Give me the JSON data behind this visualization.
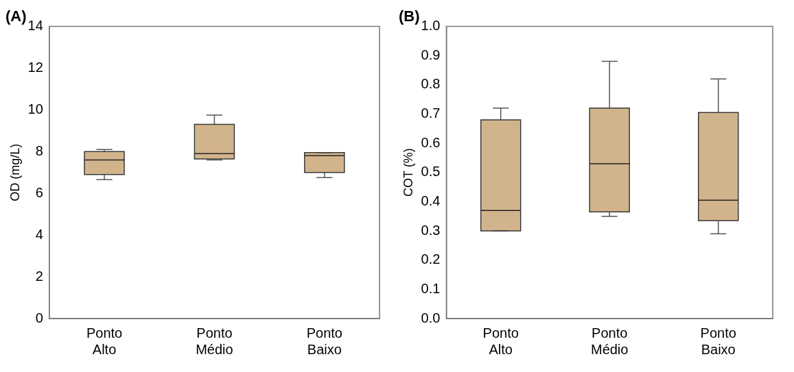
{
  "chart_data": [
    {
      "type": "box",
      "title": "(A)",
      "ylabel": "OD (mg/L)",
      "categories": [
        "Ponto Alto",
        "Ponto Médio",
        "Ponto Baixo"
      ],
      "ylim": [
        0,
        14
      ],
      "yticks": [
        0,
        2,
        4,
        6,
        8,
        10,
        12,
        14
      ],
      "series": [
        {
          "color": "#d2b48c",
          "boxes": [
            {
              "low": 6.65,
              "q1": 6.9,
              "median": 7.6,
              "q3": 8.0,
              "high": 8.1
            },
            {
              "low": 7.6,
              "q1": 7.65,
              "median": 7.9,
              "q3": 9.3,
              "high": 9.75
            },
            {
              "low": 6.75,
              "q1": 7.0,
              "median": 7.8,
              "q3": 7.95,
              "high": 7.95
            }
          ]
        }
      ]
    },
    {
      "type": "box",
      "title": "(B)",
      "ylabel": "COT (%)",
      "categories": [
        "Ponto Alto",
        "Ponto Médio",
        "Ponto Baixo"
      ],
      "ylim": [
        0,
        1
      ],
      "yticks": [
        {
          "value": 0,
          "label": "0.0"
        },
        0.1,
        0.2,
        0.3,
        0.4,
        0.5,
        0.6,
        0.7,
        0.8,
        0.9,
        {
          "value": 1,
          "label": "1.0"
        }
      ],
      "series": [
        {
          "color": "#d2b48c",
          "boxes": [
            {
              "low": 0.3,
              "q1": 0.3,
              "median": 0.37,
              "q3": 0.68,
              "high": 0.72
            },
            {
              "low": 0.35,
              "q1": 0.365,
              "median": 0.53,
              "q3": 0.72,
              "high": 0.88
            },
            {
              "low": 0.29,
              "q1": 0.335,
              "median": 0.405,
              "q3": 0.705,
              "high": 0.82
            }
          ]
        }
      ]
    }
  ]
}
